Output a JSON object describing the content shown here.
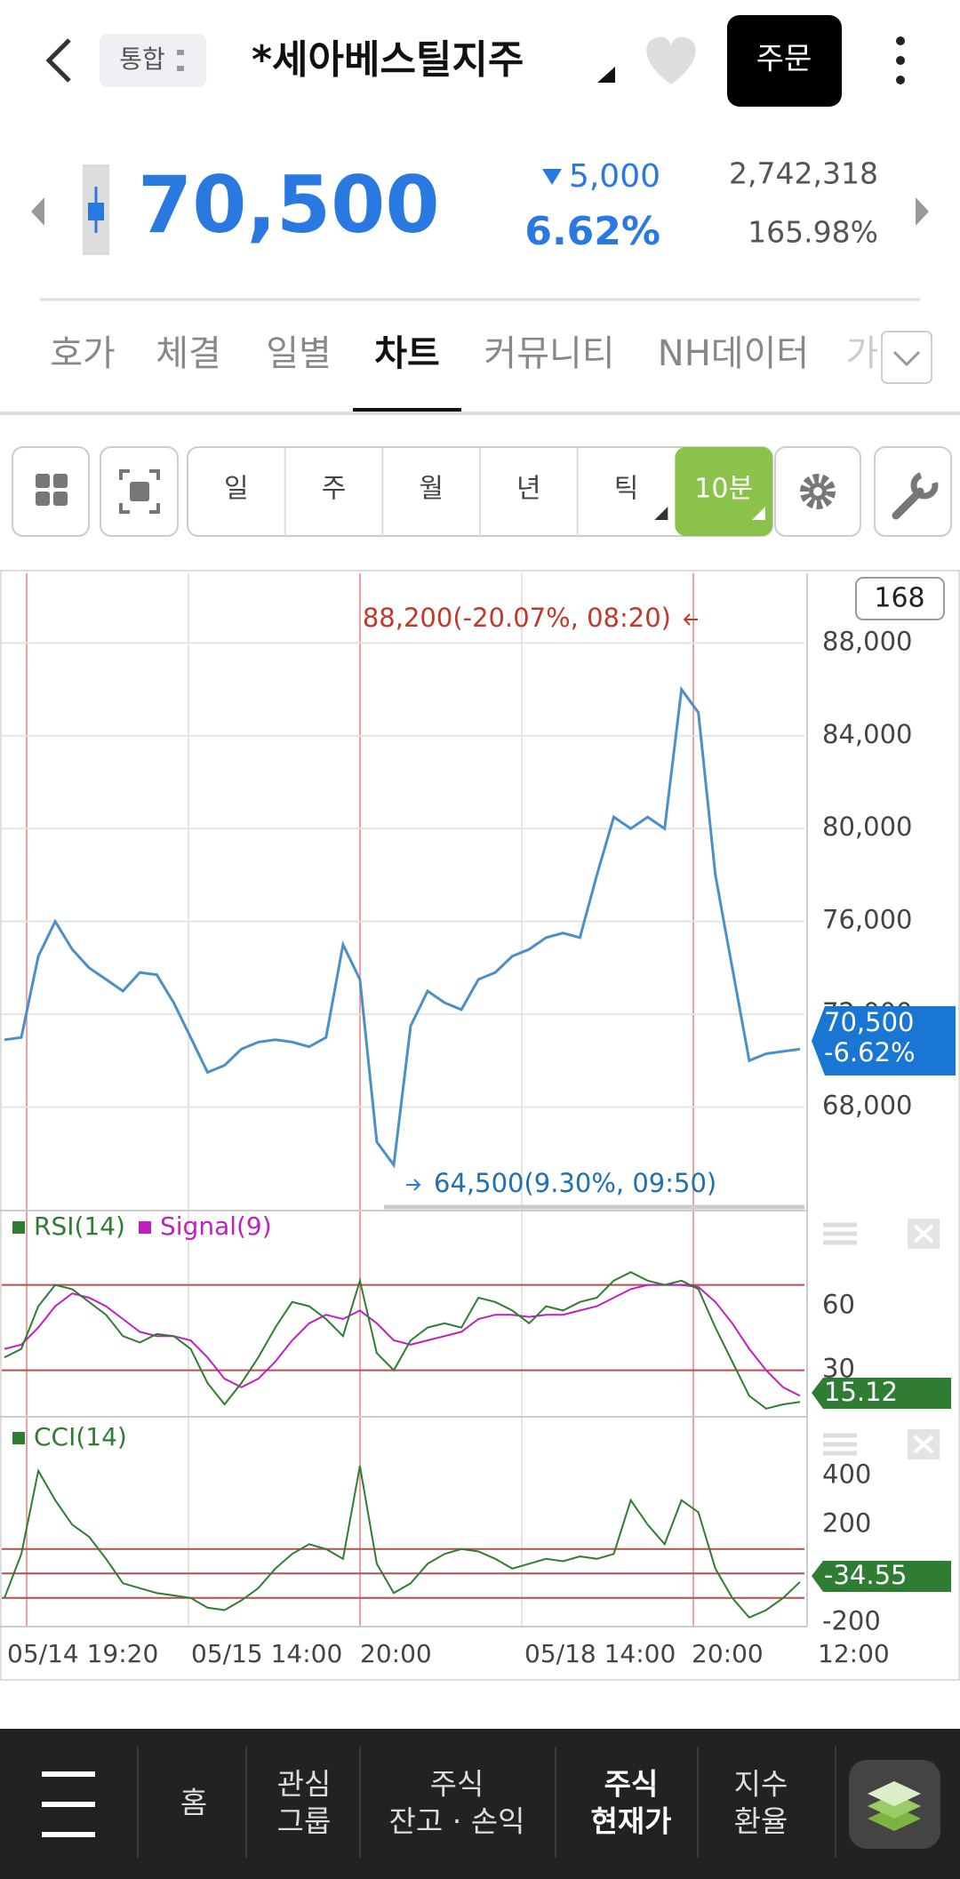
{
  "header": {
    "market": "통합",
    "title": "*세아베스틸지주",
    "order_button": "주문"
  },
  "quote": {
    "price": "70,500",
    "change": "5,000",
    "change_rate": "6.62%",
    "volume": "2,742,318",
    "volume_rate": "165.98%"
  },
  "tabs": [
    "호가",
    "체결",
    "일별",
    "차트",
    "커뮤니티",
    "NH데이터",
    "가"
  ],
  "active_tab": 3,
  "toolbar": {
    "periods": [
      "일",
      "주",
      "월",
      "년",
      "틱",
      "10분"
    ],
    "active_period": 5
  },
  "chart": {
    "count": "168",
    "price": {
      "type": "line",
      "ylim": [
        64000,
        91000
      ],
      "yticks": [
        {
          "value": 88000,
          "label": "88,000"
        },
        {
          "value": 84000,
          "label": "84,000"
        },
        {
          "value": 80000,
          "label": "80,000"
        },
        {
          "value": 76000,
          "label": "76,000"
        },
        {
          "value": 72000,
          "label": "72,000"
        },
        {
          "value": 68000,
          "label": "68,000"
        }
      ],
      "values": [
        70900,
        71000,
        74500,
        76000,
        74800,
        74000,
        73500,
        73000,
        73800,
        73700,
        72500,
        71000,
        69500,
        69800,
        70500,
        70800,
        70900,
        70800,
        70600,
        71000,
        75000,
        73500,
        66500,
        65500,
        71500,
        73000,
        72500,
        72200,
        73500,
        73800,
        74500,
        74800,
        75300,
        75500,
        75300,
        78000,
        80500,
        80000,
        80500,
        80000,
        86000,
        85000,
        78000,
        74000,
        70000,
        70300,
        70400,
        70500
      ],
      "color": "#4a90c8",
      "high_label": "88,200(-20.07%, 08:20)",
      "low_label": "64,500(9.30%, 09:50)",
      "last_label": "70,500",
      "last_change": "-6.62%"
    },
    "rsi": {
      "type": "line",
      "name": "RSI(14)",
      "signal_name": "Signal(9)",
      "ylim": [
        9,
        104
      ],
      "yticks": [
        60,
        30
      ],
      "levels": [
        70,
        30
      ],
      "values": [
        36,
        40,
        60,
        70,
        68,
        62,
        56,
        46,
        43,
        47,
        46,
        40,
        24,
        14,
        24,
        36,
        50,
        62,
        60,
        54,
        46,
        72,
        38,
        30,
        44,
        50,
        52,
        50,
        64,
        62,
        58,
        52,
        60,
        58,
        62,
        64,
        72,
        76,
        72,
        70,
        72,
        68,
        50,
        34,
        18,
        12,
        14,
        15.12
      ],
      "signal": [
        40,
        42,
        50,
        60,
        66,
        64,
        60,
        54,
        48,
        46,
        46,
        44,
        36,
        26,
        22,
        26,
        34,
        44,
        52,
        56,
        54,
        58,
        52,
        44,
        42,
        44,
        46,
        48,
        54,
        56,
        56,
        55,
        56,
        56,
        58,
        60,
        64,
        68,
        70,
        70,
        70,
        69,
        62,
        52,
        40,
        30,
        22,
        18
      ],
      "color": "#2e7d32",
      "signal_color": "#c020c0"
    },
    "cci": {
      "type": "line",
      "name": "CCI(14)",
      "ylim": [
        -210,
        630
      ],
      "yticks": [
        400,
        200,
        -200
      ],
      "levels": [
        100,
        0,
        -100
      ],
      "values": [
        -100,
        80,
        420,
        300,
        200,
        150,
        60,
        -40,
        -60,
        -80,
        -90,
        -100,
        -140,
        -150,
        -110,
        -60,
        20,
        80,
        120,
        100,
        60,
        440,
        40,
        -80,
        -40,
        40,
        80,
        100,
        90,
        60,
        20,
        40,
        60,
        50,
        70,
        60,
        80,
        300,
        200,
        120,
        300,
        250,
        20,
        -100,
        -180,
        -150,
        -100,
        -34.55
      ],
      "color": "#2e7d32"
    },
    "xlabels": [
      "05/14 19:20",
      "05/15 14:00",
      "20:00",
      "05/18 14:00",
      "20:00",
      "12:00"
    ]
  },
  "nav": [
    [
      "홈"
    ],
    [
      "관심",
      "그룹"
    ],
    [
      "주식",
      "잔고 · 손익"
    ],
    [
      "주식",
      "현재가"
    ],
    [
      "지수",
      "환율"
    ]
  ]
}
